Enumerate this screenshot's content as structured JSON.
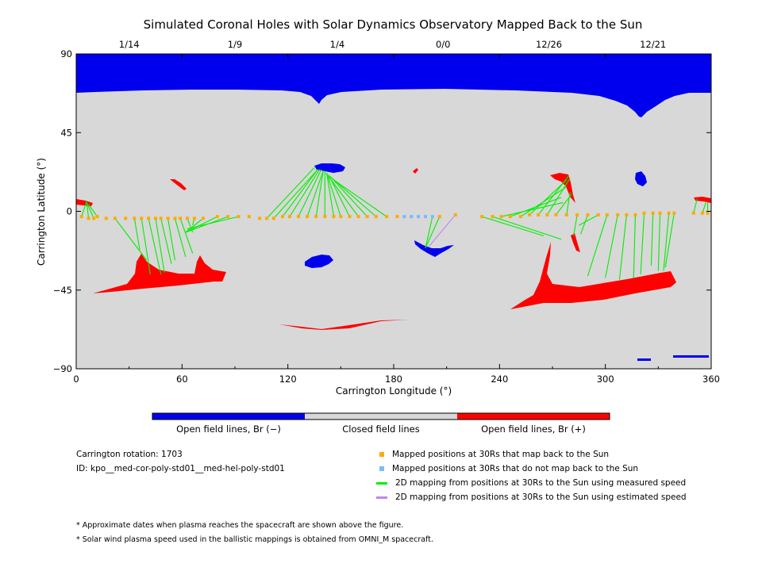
{
  "chart_data": {
    "type": "scatter",
    "title": "Simulated Coronal Holes with Solar Dynamics Observatory Mapped Back to the Sun",
    "xlabel": "Carrington Longitude (°)",
    "ylabel": "Carrington Latitude (°)",
    "xlim": [
      0,
      360
    ],
    "ylim": [
      -90,
      90
    ],
    "x_ticks": [
      "0",
      "60",
      "120",
      "180",
      "240",
      "300",
      "360"
    ],
    "y_ticks": [
      "90",
      "45",
      "0",
      "-45",
      "-90"
    ],
    "top_axis": {
      "ticks": [
        {
          "lon": 30,
          "label": "1/14"
        },
        {
          "lon": 90,
          "label": "1/9"
        },
        {
          "lon": 148,
          "label": "1/4"
        },
        {
          "lon": 208,
          "label": "0/0"
        },
        {
          "lon": 268,
          "label": "12/26"
        },
        {
          "lon": 327,
          "label": "12/21"
        }
      ]
    },
    "colorbar": {
      "segments": [
        {
          "label": "Open field lines, Br (−)",
          "color": "#0000ee"
        },
        {
          "label": "Closed field lines",
          "color": "#d8d8d8"
        },
        {
          "label": "Open field lines, Br (+)",
          "color": "#ff0000"
        }
      ]
    },
    "colors": {
      "negative_open": "#0000ee",
      "closed": "#d8d8d8",
      "positive_open": "#ff0000",
      "mapped": "#ffaa00",
      "unmapped": "#77bbff",
      "measured": "#00ee00",
      "estimated": "#bb88ee"
    },
    "series": [
      {
        "name": "Mapped positions at 30Rs that map back to the Sun",
        "type": "scatter",
        "x": [
          3,
          7,
          10,
          12,
          17,
          22,
          28,
          33,
          37,
          41,
          45,
          48,
          52,
          56,
          59,
          63,
          67,
          72,
          80,
          86,
          92,
          98,
          104,
          108,
          112,
          117,
          121,
          126,
          131,
          136,
          141,
          146,
          150,
          155,
          160,
          165,
          170,
          176,
          182,
          206,
          215,
          230,
          236,
          241,
          246,
          252,
          257,
          262,
          267,
          272,
          278,
          284,
          290,
          296,
          301,
          307,
          312,
          317,
          322,
          327,
          331,
          336,
          339,
          350,
          355,
          358
        ],
        "y": [
          -3,
          -4,
          -4,
          -3,
          -4,
          -4,
          -4,
          -4,
          -4,
          -4,
          -4,
          -4,
          -4,
          -4,
          -4,
          -4,
          -4,
          -4,
          -3,
          -3,
          -3,
          -3,
          -4,
          -4,
          -4,
          -3,
          -3,
          -3,
          -3,
          -3,
          -3,
          -3,
          -3,
          -3,
          -3,
          -3,
          -3,
          -3,
          -3,
          -3,
          -2,
          -3,
          -3,
          -3,
          -3,
          -3,
          -2,
          -2,
          -2,
          -2,
          -2,
          -2,
          -2,
          -2,
          -2,
          -2,
          -2,
          -2,
          -1,
          -1,
          -1,
          -1,
          -1,
          -1,
          -1,
          -1
        ]
      },
      {
        "name": "Mapped positions at 30Rs that do not map back to the Sun",
        "type": "scatter",
        "x": [
          186,
          190,
          194,
          198,
          202
        ],
        "y": [
          -3,
          -3,
          -3,
          -3,
          -3
        ]
      },
      {
        "name": "2D mapping from positions at 30Rs to the Sun using measured speed",
        "type": "segments",
        "x0": [
          3,
          7,
          10,
          12,
          22,
          33,
          37,
          41,
          45,
          48,
          52,
          56,
          59,
          63,
          67,
          72,
          80,
          86,
          92,
          108,
          112,
          117,
          121,
          126,
          131,
          136,
          141,
          146,
          150,
          155,
          160,
          165,
          170,
          176,
          202,
          206,
          230,
          236,
          241,
          246,
          252,
          257,
          262,
          267,
          272,
          278,
          284,
          290,
          296,
          301,
          307,
          312,
          317,
          322,
          327,
          331,
          336,
          339,
          350,
          355,
          358
        ],
        "y0": [
          -3,
          -4,
          -4,
          -3,
          -4,
          -4,
          -4,
          -4,
          -4,
          -4,
          -4,
          -4,
          -4,
          -4,
          -4,
          -4,
          -3,
          -3,
          -3,
          -4,
          -4,
          -3,
          -3,
          -3,
          -3,
          -3,
          -3,
          -3,
          -3,
          -3,
          -3,
          -3,
          -3,
          -3,
          -3,
          -3,
          -3,
          -3,
          -3,
          -3,
          -3,
          -2,
          -2,
          -2,
          -2,
          -2,
          -2,
          -2,
          -2,
          -2,
          -2,
          -2,
          -2,
          -1,
          -1,
          -1,
          -1,
          -1,
          -1,
          -1,
          -1
        ],
        "x1": [
          6,
          6,
          6,
          7,
          40,
          36,
          42,
          48,
          50,
          54,
          56,
          62,
          66,
          66,
          66,
          62,
          62,
          62,
          63,
          135,
          137,
          137,
          138,
          139,
          140,
          140,
          141,
          142,
          142,
          143,
          143,
          144,
          145,
          146,
          198,
          198,
          265,
          275,
          276,
          275,
          278,
          278,
          279,
          280,
          281,
          280,
          282,
          286,
          285,
          290,
          300,
          308,
          316,
          320,
          326,
          330,
          333,
          334,
          352,
          357,
          358
        ],
        "y1": [
          6,
          5,
          5,
          4,
          -28,
          -22,
          -36,
          -36,
          -35,
          -30,
          -28,
          -26,
          -24,
          -12,
          -8,
          -12,
          -12,
          -12,
          -10,
          25,
          24,
          24,
          24,
          24,
          23,
          23,
          23,
          22,
          22,
          21,
          20,
          20,
          19,
          18,
          -21,
          -21,
          -14,
          -16,
          5,
          8,
          14,
          18,
          20,
          19,
          10,
          11,
          -14,
          -13,
          -8,
          -37,
          -38,
          -39,
          -38,
          -36,
          -31,
          -34,
          -34,
          -32,
          7,
          5,
          5
        ]
      },
      {
        "name": "2D mapping from positions at 30Rs to the Sun using estimated speed",
        "type": "segments",
        "x0": [
          215
        ],
        "y0": [
          -2
        ],
        "x1": [
          200
        ],
        "y1": [
          -20
        ]
      }
    ]
  },
  "legend": {
    "mapped": "Mapped positions at 30Rs that map back to the Sun",
    "unmapped": "Mapped positions at 30Rs that do not map back to the Sun",
    "measured": "2D mapping from positions at 30Rs to the Sun using measured speed",
    "estimated": "2D mapping from positions at 30Rs to the Sun using estimated speed"
  },
  "info": {
    "rotation": "Carrington rotation: 1703",
    "id": "ID: kpo__med-cor-poly-std01__med-hel-poly-std01"
  },
  "footnotes": {
    "dates": "* Approximate dates when plasma reaches the spacecraft are shown above the figure.",
    "speed": "* Solar wind plasma speed used in the ballistic mappings is obtained from OMNI_M spacecraft."
  }
}
